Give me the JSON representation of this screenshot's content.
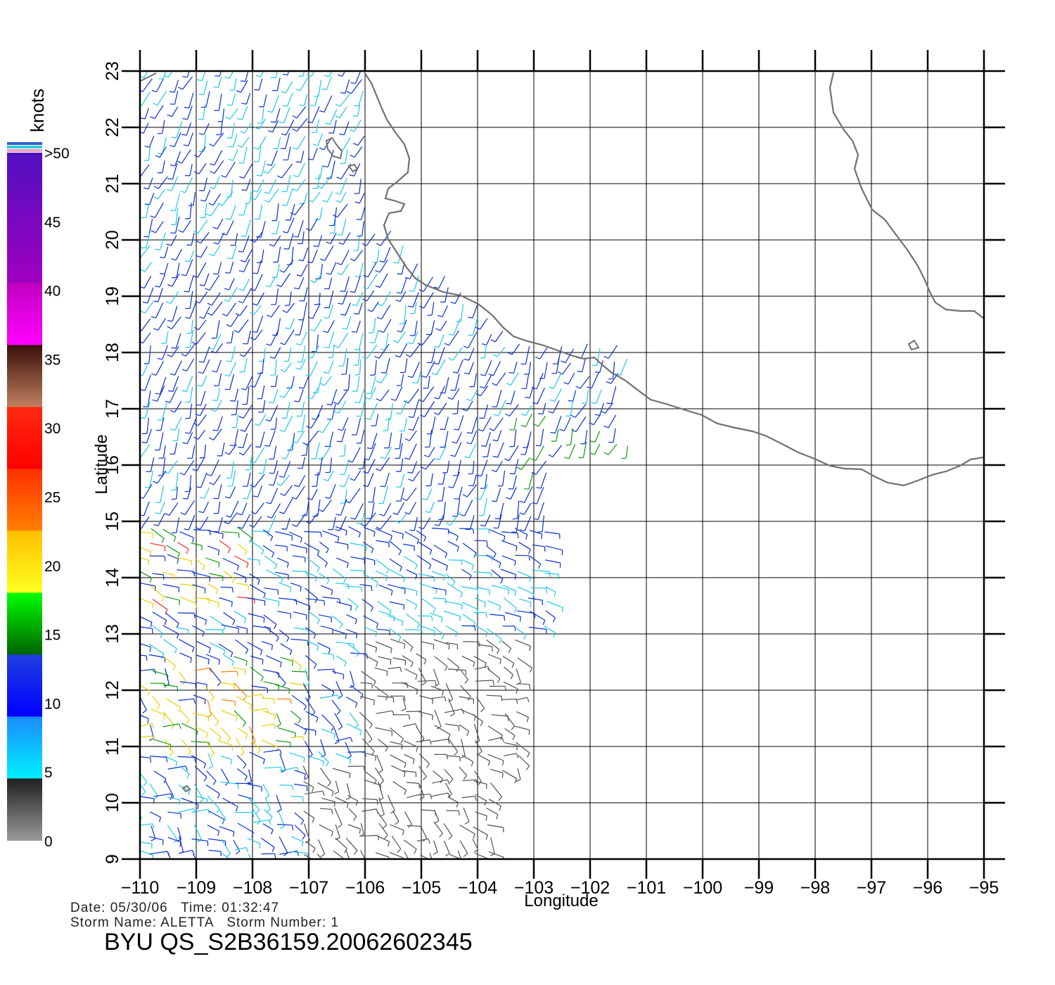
{
  "colorbar": {
    "title": "knots",
    "ticks": [
      "0",
      "5",
      "10",
      "15",
      "20",
      "25",
      "30",
      "35",
      "40",
      "45",
      ">50"
    ]
  },
  "axes": {
    "xlabel": "Longitude",
    "ylabel": "Latitude",
    "x_ticks": [
      "−110",
      "−109",
      "−108",
      "−107",
      "−106",
      "−105",
      "−104",
      "−103",
      "−102",
      "−101",
      "−100",
      "−99",
      "−98",
      "−97",
      "−96",
      "−95"
    ],
    "y_ticks": [
      "9",
      "10",
      "11",
      "12",
      "13",
      "14",
      "15",
      "16",
      "17",
      "18",
      "19",
      "20",
      "21",
      "22",
      "23"
    ]
  },
  "footer": {
    "date_line": "Date: 05/30/06   Time: 01:32:47",
    "storm_line": "Storm Name: ALETTA   Storm Number: 1",
    "product_id": "BYU QS_S2B36159.20062602345"
  },
  "map": {
    "lon_range": [
      -110,
      -95
    ],
    "lat_range": [
      9,
      23
    ],
    "coastline_color": "#707070",
    "grid_color": "#000000"
  },
  "colors": {
    "wind_0_5": "#505050",
    "wind_5_10": "#1fc8e8",
    "wind_10_15": "#0a2fd0",
    "wind_15_20": "#0f9a0f",
    "wind_20_25": "#e8d000",
    "wind_25_30": "#ff8000",
    "wind_30_35": "#ff2020"
  }
}
